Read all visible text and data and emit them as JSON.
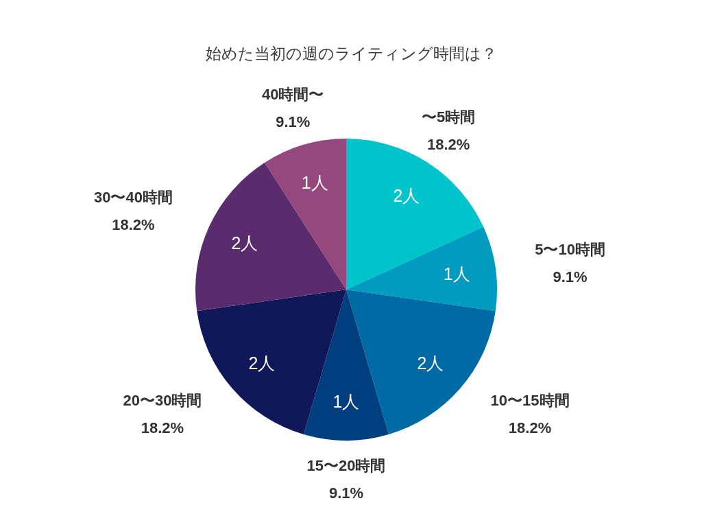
{
  "chart_data": {
    "type": "pie",
    "title": "始めた当初の週のライティング時間は？",
    "categories": [
      "〜5時間",
      "5〜10時間",
      "10〜15時間",
      "15〜20時間",
      "20〜30時間",
      "30〜40時間",
      "40時間〜"
    ],
    "values": [
      2,
      1,
      2,
      1,
      2,
      2,
      1
    ],
    "value_labels": [
      "2人",
      "1人",
      "2人",
      "1人",
      "2人",
      "2人",
      "1人"
    ],
    "colors": [
      "#00c4cc",
      "#009bbf",
      "#006aa4",
      "#003f7f",
      "#10185a",
      "#5a2b6d",
      "#94487d"
    ],
    "annotations": [
      {
        "text": "18.2%",
        "x": "〜5時間"
      },
      {
        "text": "9.1%",
        "x": "5〜10時間"
      },
      {
        "text": "18.2%",
        "x": "10〜15時間"
      },
      {
        "text": "9.1%",
        "x": "15〜20時間"
      },
      {
        "text": "18.2%",
        "x": "20〜30時間"
      },
      {
        "text": "18.2%",
        "x": "30〜40時間"
      },
      {
        "text": "9.1%",
        "x": "40時間〜"
      }
    ]
  }
}
